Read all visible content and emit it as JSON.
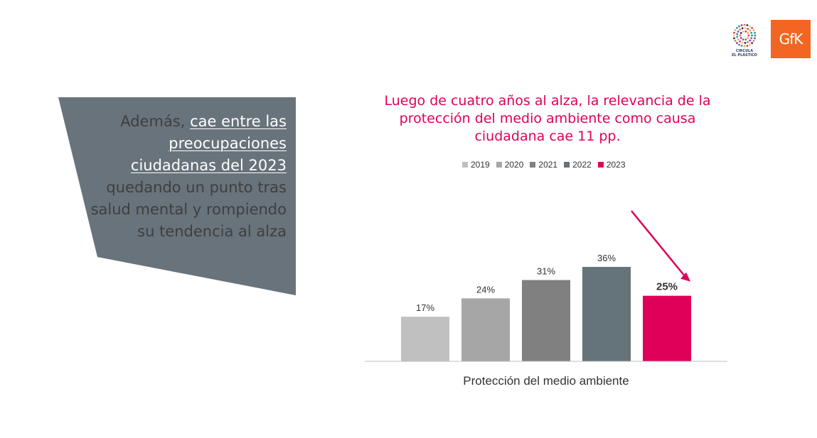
{
  "callout": {
    "intro": "Además, ",
    "highlight": "cae entre las preocupaciones ciudadanas del 2023",
    "rest": " quedando un punto tras salud mental y rompiendo su tendencia al alza",
    "panel_color": "#68737b"
  },
  "logos": {
    "circula_caption_1": "CIRCULA",
    "circula_caption_2": "EL PLÁSTICO",
    "gfk": "GfK"
  },
  "chart_data": {
    "type": "bar",
    "title": "Luego de cuatro años al alza, la relevancia de la protección del medio ambiente como causa ciudadana cae 11 pp.",
    "categories": [
      "Protección del medio ambiente"
    ],
    "xlabel": "",
    "ylabel": "",
    "ylim": [
      0,
      40
    ],
    "grid": false,
    "legend_position": "top",
    "series": [
      {
        "name": "2019",
        "values": [
          17
        ],
        "label": "17%",
        "color": "#c0c0c0"
      },
      {
        "name": "2020",
        "values": [
          24
        ],
        "label": "24%",
        "color": "#a6a6a6"
      },
      {
        "name": "2021",
        "values": [
          31
        ],
        "label": "31%",
        "color": "#808080"
      },
      {
        "name": "2022",
        "values": [
          36
        ],
        "label": "36%",
        "color": "#65737b"
      },
      {
        "name": "2023",
        "values": [
          25
        ],
        "label": "25%",
        "color": "#e0005a",
        "highlight": true
      }
    ],
    "annotation": "arrow pointing down to 2023 bar"
  }
}
